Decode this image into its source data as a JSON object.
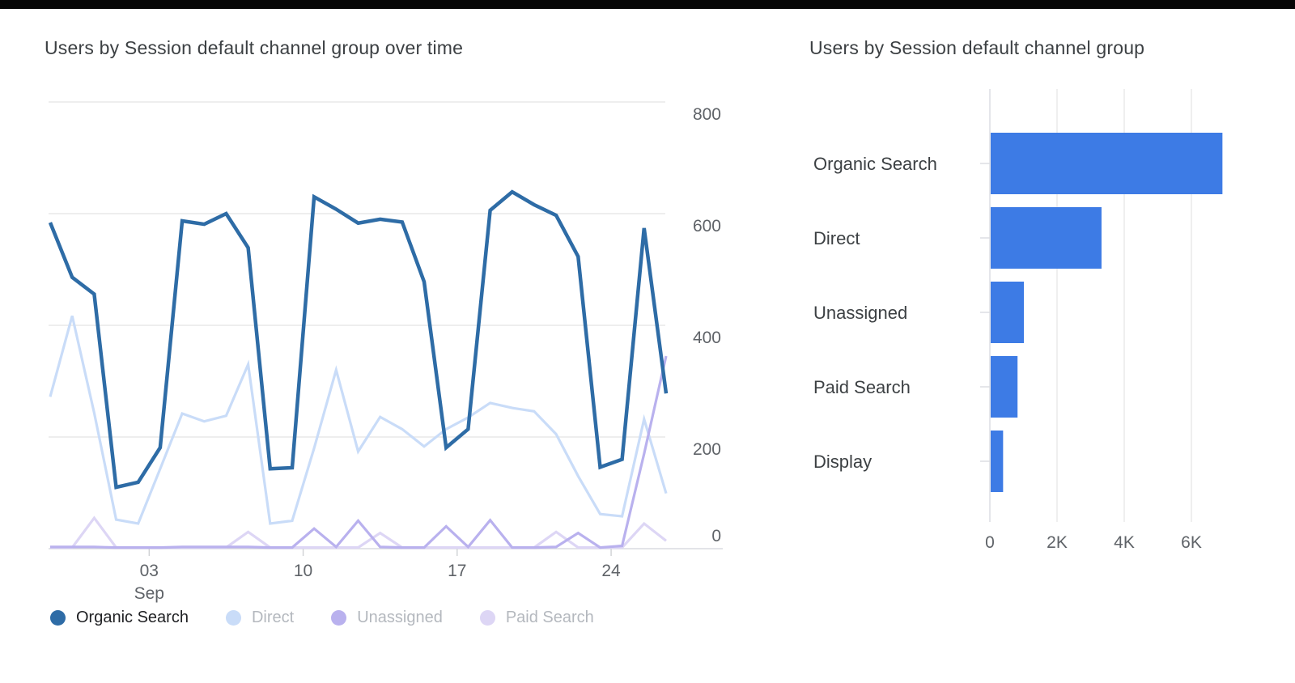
{
  "left_chart": {
    "title": "Users by Session default channel group over time",
    "legend": [
      {
        "label": "Organic Search",
        "color": "#2e6ca6",
        "text_color": "#202124"
      },
      {
        "label": "Direct",
        "color": "#c9dcf8",
        "text_color": "#b4b8be"
      },
      {
        "label": "Unassigned",
        "color": "#b9b1ee",
        "text_color": "#b4b8be"
      },
      {
        "label": "Paid Search",
        "color": "#ddd6f5",
        "text_color": "#b4b8be"
      }
    ]
  },
  "right_chart": {
    "title": "Users by Session default channel group"
  },
  "chart_data": [
    {
      "type": "line",
      "title": "Users by Session default channel group over time",
      "x_range_note": "29 daily points, late Aug to late Sep",
      "n_points": 29,
      "x_tick_labels": [
        "03",
        "10",
        "17",
        "24"
      ],
      "x_tick_sub_label": "Sep",
      "x_tick_positions": [
        4.5,
        11.5,
        18.5,
        25.5
      ],
      "ylim": [
        0,
        800
      ],
      "y_ticks": [
        0,
        200,
        400,
        600,
        800
      ],
      "grid": true,
      "legend_position": "bottom",
      "series": [
        {
          "name": "Organic Search",
          "color": "#2e6ca6",
          "width": 4.5,
          "values": [
            584,
            486,
            456,
            110,
            119,
            181,
            587,
            581,
            600,
            539,
            143,
            145,
            630,
            608,
            583,
            590,
            585,
            478,
            181,
            214,
            606,
            639,
            616,
            597,
            523,
            146,
            160,
            574,
            278
          ]
        },
        {
          "name": "Direct",
          "color": "#c9dcf8",
          "width": 3.2,
          "values": [
            272,
            417,
            243,
            52,
            45,
            143,
            242,
            228,
            238,
            330,
            45,
            50,
            180,
            320,
            174,
            236,
            214,
            183,
            214,
            235,
            261,
            252,
            246,
            205,
            130,
            62,
            58,
            232,
            99
          ]
        },
        {
          "name": "Unassigned",
          "color": "#b9b1ee",
          "width": 3.2,
          "values": [
            3,
            3,
            3,
            2,
            2,
            2,
            3,
            3,
            3,
            3,
            2,
            2,
            36,
            3,
            50,
            3,
            2,
            2,
            40,
            3,
            51,
            2,
            2,
            3,
            28,
            2,
            5,
            170,
            345
          ]
        },
        {
          "name": "Paid Search",
          "color": "#ddd6f5",
          "width": 3.2,
          "values": [
            2,
            2,
            55,
            2,
            2,
            2,
            2,
            2,
            2,
            30,
            2,
            2,
            2,
            2,
            2,
            28,
            2,
            2,
            2,
            2,
            2,
            2,
            2,
            30,
            2,
            2,
            2,
            45,
            14
          ]
        }
      ]
    },
    {
      "type": "bar",
      "title": "Users by Session default channel group",
      "orientation": "horizontal",
      "categories": [
        "Organic Search",
        "Direct",
        "Unassigned",
        "Paid Search",
        "Display"
      ],
      "values": [
        6900,
        3300,
        990,
        800,
        370
      ],
      "bar_color": "#3d7be5",
      "x_tick_labels": [
        "0",
        "2K",
        "4K",
        "6K"
      ],
      "x_tick_values": [
        0,
        2000,
        4000,
        6000
      ],
      "xlim": [
        0,
        7000
      ],
      "grid": true
    }
  ],
  "colors": {
    "grid_line": "#e8e8e8",
    "axis_line": "#dadce0",
    "axis_text": "#5f6368",
    "category_text": "#3c4043"
  }
}
